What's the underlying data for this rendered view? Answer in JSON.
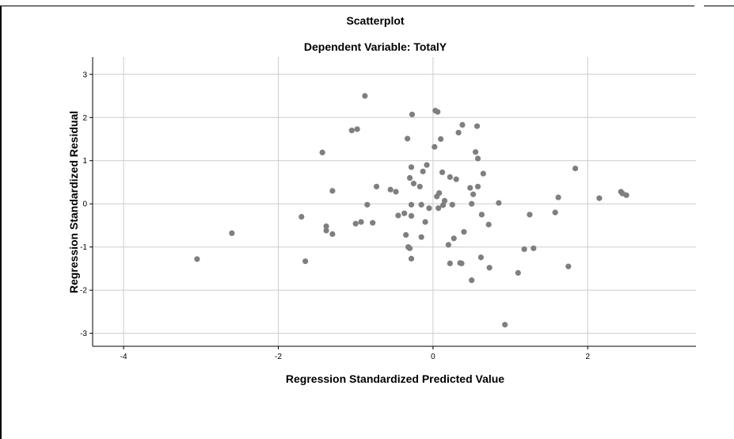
{
  "chart_data": {
    "type": "scatter",
    "title": "Scatterplot",
    "subtitle": "Dependent Variable: TotalY",
    "xlabel": "Regression Standardized Predicted Value",
    "ylabel": "Regression Standardized Residual",
    "xlim": [
      -4.4,
      3.4
    ],
    "ylim": [
      -3.3,
      3.4
    ],
    "xticks": [
      -4,
      -2,
      0,
      2
    ],
    "xtick_labels": [
      "-4",
      "-2",
      "0",
      "2"
    ],
    "yticks": [
      -3,
      -2,
      -1,
      0,
      1,
      2,
      3
    ],
    "ytick_labels": [
      "-3",
      "-2",
      "-1",
      "0",
      "1",
      "2",
      "3"
    ],
    "grid": true,
    "colors": {
      "points": "#7f7f7f",
      "grid": "#cccccc",
      "axis": "#000000"
    },
    "points": [
      {
        "x": -3.05,
        "y": -1.28
      },
      {
        "x": -2.6,
        "y": -0.68
      },
      {
        "x": -1.7,
        "y": -0.3
      },
      {
        "x": -1.65,
        "y": -1.33
      },
      {
        "x": -1.43,
        "y": 1.19
      },
      {
        "x": -1.38,
        "y": -0.52
      },
      {
        "x": -1.38,
        "y": -0.62
      },
      {
        "x": -1.3,
        "y": 0.3
      },
      {
        "x": -1.3,
        "y": -0.7
      },
      {
        "x": -1.05,
        "y": 1.7
      },
      {
        "x": -0.98,
        "y": 1.73
      },
      {
        "x": -1.0,
        "y": -0.46
      },
      {
        "x": -0.93,
        "y": -0.42
      },
      {
        "x": -0.88,
        "y": 2.5
      },
      {
        "x": -0.85,
        "y": -0.02
      },
      {
        "x": -0.78,
        "y": -0.44
      },
      {
        "x": -0.73,
        "y": 0.4
      },
      {
        "x": -0.55,
        "y": 0.33
      },
      {
        "x": -0.48,
        "y": 0.28
      },
      {
        "x": -0.45,
        "y": -0.27
      },
      {
        "x": -0.37,
        "y": -0.22
      },
      {
        "x": -0.33,
        "y": 1.51
      },
      {
        "x": -0.35,
        "y": -0.72
      },
      {
        "x": -0.32,
        "y": -1.0
      },
      {
        "x": -0.3,
        "y": -1.03
      },
      {
        "x": -0.28,
        "y": -0.28
      },
      {
        "x": -0.3,
        "y": 0.6
      },
      {
        "x": -0.28,
        "y": 0.85
      },
      {
        "x": -0.25,
        "y": 0.47
      },
      {
        "x": -0.28,
        "y": -0.02
      },
      {
        "x": -0.28,
        "y": -1.27
      },
      {
        "x": -0.27,
        "y": 2.07
      },
      {
        "x": -0.17,
        "y": 0.4
      },
      {
        "x": -0.15,
        "y": -0.02
      },
      {
        "x": -0.13,
        "y": 0.75
      },
      {
        "x": -0.15,
        "y": -0.77
      },
      {
        "x": -0.1,
        "y": -0.42
      },
      {
        "x": -0.08,
        "y": 0.9
      },
      {
        "x": -0.05,
        "y": -0.1
      },
      {
        "x": 0.02,
        "y": 1.32
      },
      {
        "x": 0.03,
        "y": 2.16
      },
      {
        "x": 0.06,
        "y": 2.13
      },
      {
        "x": 0.05,
        "y": 0.17
      },
      {
        "x": 0.07,
        "y": -0.1
      },
      {
        "x": 0.08,
        "y": 0.25
      },
      {
        "x": 0.1,
        "y": 1.5
      },
      {
        "x": 0.12,
        "y": 0.73
      },
      {
        "x": 0.13,
        "y": -0.03
      },
      {
        "x": 0.15,
        "y": 0.07
      },
      {
        "x": 0.2,
        "y": -0.95
      },
      {
        "x": 0.22,
        "y": 0.62
      },
      {
        "x": 0.22,
        "y": -1.38
      },
      {
        "x": 0.25,
        "y": -0.02
      },
      {
        "x": 0.27,
        "y": -0.8
      },
      {
        "x": 0.3,
        "y": 0.57
      },
      {
        "x": 0.33,
        "y": 1.65
      },
      {
        "x": 0.35,
        "y": -1.37
      },
      {
        "x": 0.37,
        "y": -1.38
      },
      {
        "x": 0.38,
        "y": 1.83
      },
      {
        "x": 0.4,
        "y": -0.65
      },
      {
        "x": 0.48,
        "y": 0.37
      },
      {
        "x": 0.5,
        "y": 0.0
      },
      {
        "x": 0.52,
        "y": 0.22
      },
      {
        "x": 0.5,
        "y": -1.77
      },
      {
        "x": 0.55,
        "y": 1.2
      },
      {
        "x": 0.57,
        "y": 1.8
      },
      {
        "x": 0.58,
        "y": 1.05
      },
      {
        "x": 0.58,
        "y": 0.4
      },
      {
        "x": 0.62,
        "y": -1.24
      },
      {
        "x": 0.63,
        "y": -0.25
      },
      {
        "x": 0.65,
        "y": 0.7
      },
      {
        "x": 0.72,
        "y": -0.48
      },
      {
        "x": 0.73,
        "y": -1.48
      },
      {
        "x": 0.85,
        "y": 0.02
      },
      {
        "x": 0.93,
        "y": -2.8
      },
      {
        "x": 1.1,
        "y": -1.6
      },
      {
        "x": 1.18,
        "y": -1.05
      },
      {
        "x": 1.25,
        "y": -0.25
      },
      {
        "x": 1.3,
        "y": -1.03
      },
      {
        "x": 1.58,
        "y": -0.2
      },
      {
        "x": 1.62,
        "y": 0.15
      },
      {
        "x": 1.75,
        "y": -1.45
      },
      {
        "x": 1.84,
        "y": 0.82
      },
      {
        "x": 2.15,
        "y": 0.13
      },
      {
        "x": 2.43,
        "y": 0.28
      },
      {
        "x": 2.45,
        "y": 0.24
      },
      {
        "x": 2.5,
        "y": 0.2
      }
    ]
  }
}
